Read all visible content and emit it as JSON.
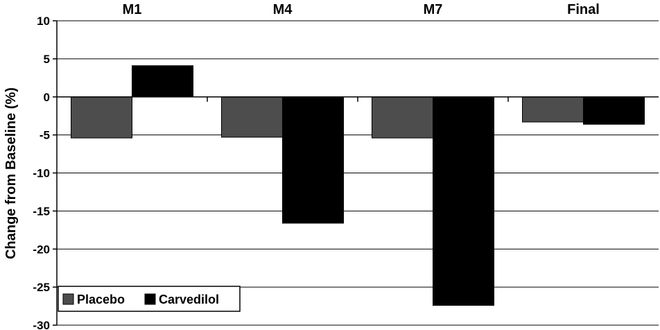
{
  "chart_data": {
    "type": "bar",
    "categories": [
      "M1",
      "M4",
      "M7",
      "Final"
    ],
    "series": [
      {
        "name": "Placebo",
        "values": [
          -5.4,
          -5.3,
          -5.4,
          -3.3
        ],
        "color": "#4d4d4d"
      },
      {
        "name": "Carvedilol",
        "values": [
          4.1,
          -16.6,
          -27.4,
          -3.6
        ],
        "color": "#000000"
      }
    ],
    "title": "",
    "xlabel": "",
    "ylabel": "Change from Baseline (%)",
    "ylim": [
      -30,
      10
    ],
    "yticks": [
      10,
      5,
      0,
      -5,
      -10,
      -15,
      -20,
      -25,
      -30
    ],
    "grid": true,
    "legend_position": "bottom-left",
    "category_labels_position": "top"
  }
}
